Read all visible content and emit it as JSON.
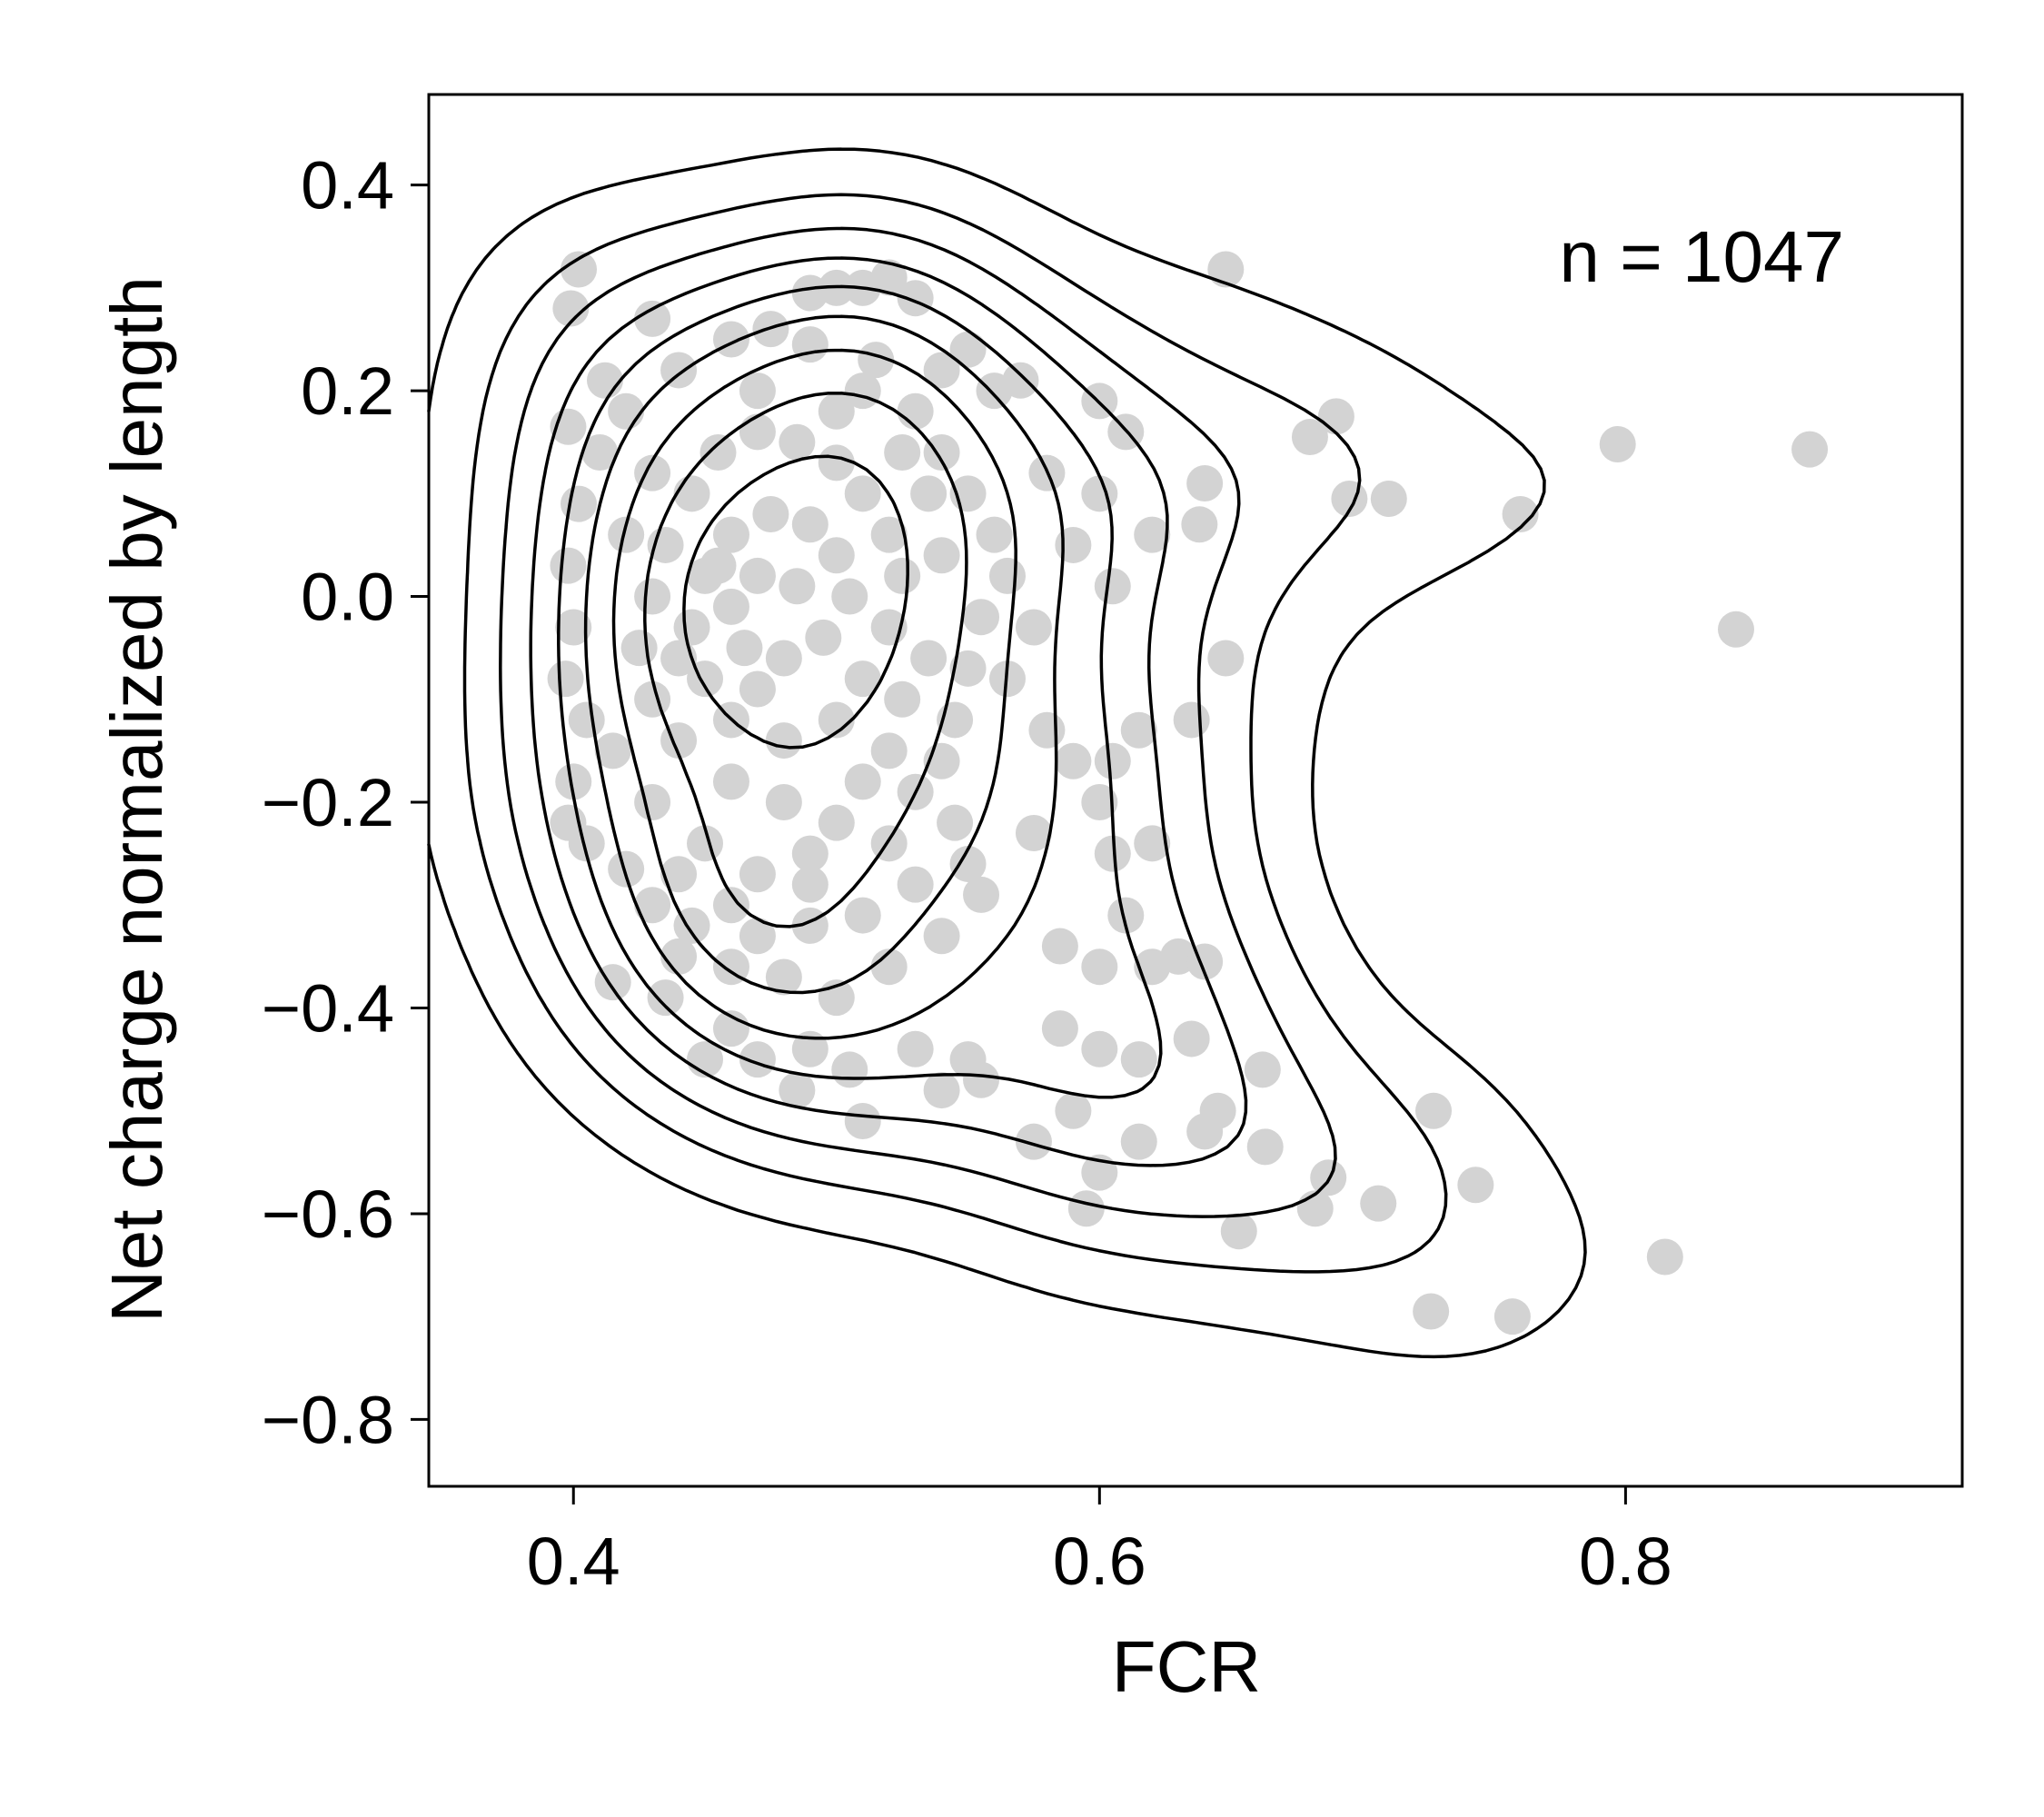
{
  "chart_data": {
    "type": "scatter",
    "xlabel": "FCR",
    "ylabel": "Net charge normalized by length",
    "xlim": [
      0.345,
      0.928
    ],
    "ylim": [
      -0.865,
      0.488
    ],
    "x_ticks": [
      0.4,
      0.6,
      0.8
    ],
    "x_tick_labels": [
      "0.4",
      "0.6",
      "0.8"
    ],
    "y_ticks": [
      0.4,
      0.2,
      0.0,
      -0.2,
      -0.4,
      -0.6,
      -0.8
    ],
    "y_tick_labels": [
      "0.4",
      "0.2",
      "0.0",
      "−0.2",
      "−0.4",
      "−0.6",
      "−0.8"
    ],
    "grid": false,
    "annotation": "n = 1047",
    "colors": {
      "points": "#d3d3d3",
      "contours": "#000000",
      "axes": "#000000"
    },
    "series": [
      {
        "points": [
          [
            0.402,
            0.318
          ],
          [
            0.399,
            0.28
          ],
          [
            0.43,
            0.27
          ],
          [
            0.412,
            0.21
          ],
          [
            0.398,
            0.165
          ],
          [
            0.52,
            0.31
          ],
          [
            0.51,
            0.3
          ],
          [
            0.49,
            0.295
          ],
          [
            0.53,
            0.29
          ],
          [
            0.5,
            0.3
          ],
          [
            0.55,
            0.24
          ],
          [
            0.54,
            0.22
          ],
          [
            0.56,
            0.2
          ],
          [
            0.57,
            0.21
          ],
          [
            0.58,
            0.12
          ],
          [
            0.6,
            0.19
          ],
          [
            0.61,
            0.16
          ],
          [
            0.6,
            0.1
          ],
          [
            0.59,
            0.05
          ],
          [
            0.605,
            0.01
          ],
          [
            0.575,
            -0.03
          ],
          [
            0.565,
            -0.08
          ],
          [
            0.58,
            -0.13
          ],
          [
            0.59,
            -0.16
          ],
          [
            0.6,
            -0.2
          ],
          [
            0.605,
            -0.25
          ],
          [
            0.61,
            -0.31
          ],
          [
            0.62,
            -0.24
          ],
          [
            0.615,
            -0.13
          ],
          [
            0.605,
            -0.16
          ],
          [
            0.575,
            -0.23
          ],
          [
            0.585,
            -0.34
          ],
          [
            0.6,
            -0.36
          ],
          [
            0.62,
            -0.36
          ],
          [
            0.63,
            -0.35
          ],
          [
            0.64,
            -0.355
          ],
          [
            0.585,
            -0.42
          ],
          [
            0.6,
            -0.44
          ],
          [
            0.615,
            -0.45
          ],
          [
            0.59,
            -0.5
          ],
          [
            0.575,
            -0.53
          ],
          [
            0.6,
            -0.56
          ],
          [
            0.595,
            -0.595
          ],
          [
            0.615,
            -0.53
          ],
          [
            0.64,
            -0.52
          ],
          [
            0.645,
            -0.5
          ],
          [
            0.635,
            -0.43
          ],
          [
            0.555,
            -0.47
          ],
          [
            0.55,
            -0.45
          ],
          [
            0.54,
            -0.48
          ],
          [
            0.53,
            -0.44
          ],
          [
            0.505,
            -0.46
          ],
          [
            0.51,
            -0.51
          ],
          [
            0.49,
            -0.44
          ],
          [
            0.485,
            -0.48
          ],
          [
            0.47,
            -0.45
          ],
          [
            0.45,
            -0.45
          ],
          [
            0.46,
            -0.42
          ],
          [
            0.435,
            -0.39
          ],
          [
            0.415,
            -0.375
          ],
          [
            0.44,
            -0.35
          ],
          [
            0.445,
            -0.32
          ],
          [
            0.43,
            -0.3
          ],
          [
            0.42,
            -0.265
          ],
          [
            0.405,
            -0.24
          ],
          [
            0.398,
            -0.22
          ],
          [
            0.4,
            -0.18
          ],
          [
            0.405,
            -0.12
          ],
          [
            0.397,
            -0.08
          ],
          [
            0.4,
            -0.03
          ],
          [
            0.398,
            0.03
          ],
          [
            0.402,
            0.09
          ],
          [
            0.41,
            0.14
          ],
          [
            0.42,
            0.18
          ],
          [
            0.44,
            0.22
          ],
          [
            0.46,
            0.25
          ],
          [
            0.475,
            0.26
          ],
          [
            0.49,
            0.245
          ],
          [
            0.515,
            0.23
          ],
          [
            0.51,
            0.2
          ],
          [
            0.53,
            0.18
          ],
          [
            0.54,
            0.14
          ],
          [
            0.55,
            0.1
          ],
          [
            0.56,
            0.06
          ],
          [
            0.565,
            0.02
          ],
          [
            0.555,
            -0.02
          ],
          [
            0.55,
            -0.07
          ],
          [
            0.545,
            -0.12
          ],
          [
            0.54,
            -0.16
          ],
          [
            0.545,
            -0.22
          ],
          [
            0.55,
            -0.26
          ],
          [
            0.555,
            -0.29
          ],
          [
            0.54,
            -0.33
          ],
          [
            0.52,
            -0.36
          ],
          [
            0.5,
            -0.39
          ],
          [
            0.48,
            -0.37
          ],
          [
            0.46,
            -0.36
          ],
          [
            0.47,
            -0.33
          ],
          [
            0.49,
            -0.32
          ],
          [
            0.51,
            -0.31
          ],
          [
            0.53,
            -0.28
          ],
          [
            0.52,
            -0.24
          ],
          [
            0.5,
            -0.22
          ],
          [
            0.48,
            -0.2
          ],
          [
            0.46,
            -0.18
          ],
          [
            0.44,
            -0.14
          ],
          [
            0.43,
            -0.1
          ],
          [
            0.425,
            -0.05
          ],
          [
            0.43,
            0.0
          ],
          [
            0.435,
            0.05
          ],
          [
            0.445,
            0.1
          ],
          [
            0.455,
            0.14
          ],
          [
            0.47,
            0.16
          ],
          [
            0.485,
            0.15
          ],
          [
            0.5,
            0.13
          ],
          [
            0.51,
            0.1
          ],
          [
            0.52,
            0.06
          ],
          [
            0.525,
            0.02
          ],
          [
            0.52,
            -0.03
          ],
          [
            0.51,
            -0.08
          ],
          [
            0.5,
            -0.12
          ],
          [
            0.48,
            -0.14
          ],
          [
            0.46,
            -0.12
          ],
          [
            0.45,
            -0.08
          ],
          [
            0.445,
            -0.03
          ],
          [
            0.45,
            0.02
          ],
          [
            0.46,
            0.06
          ],
          [
            0.475,
            0.08
          ],
          [
            0.49,
            0.07
          ],
          [
            0.5,
            0.04
          ],
          [
            0.505,
            0.0
          ],
          [
            0.495,
            -0.04
          ],
          [
            0.48,
            -0.06
          ],
          [
            0.465,
            -0.05
          ],
          [
            0.46,
            -0.01
          ],
          [
            0.47,
            0.02
          ],
          [
            0.485,
            0.01
          ],
          [
            0.455,
            0.03
          ],
          [
            0.44,
            -0.06
          ],
          [
            0.47,
            -0.09
          ],
          [
            0.52,
            -0.15
          ],
          [
            0.53,
            -0.19
          ],
          [
            0.49,
            -0.25
          ],
          [
            0.47,
            -0.27
          ],
          [
            0.45,
            -0.24
          ],
          [
            0.43,
            -0.2
          ],
          [
            0.415,
            -0.15
          ],
          [
            0.42,
            0.06
          ],
          [
            0.43,
            0.12
          ],
          [
            0.47,
            0.2
          ],
          [
            0.5,
            0.18
          ],
          [
            0.525,
            0.14
          ],
          [
            0.535,
            0.1
          ],
          [
            0.54,
            0.04
          ],
          [
            0.535,
            -0.06
          ],
          [
            0.525,
            -0.1
          ],
          [
            0.51,
            -0.18
          ],
          [
            0.49,
            -0.28
          ],
          [
            0.46,
            -0.3
          ],
          [
            0.44,
            -0.27
          ],
          [
            0.62,
            0.06
          ],
          [
            0.64,
            0.11
          ],
          [
            0.638,
            0.07
          ],
          [
            0.648,
            -0.06
          ],
          [
            0.635,
            -0.12
          ],
          [
            0.648,
            0.318
          ],
          [
            0.68,
            0.155
          ],
          [
            0.69,
            0.175
          ],
          [
            0.695,
            0.095
          ],
          [
            0.71,
            0.095
          ],
          [
            0.76,
            0.08
          ],
          [
            0.797,
            0.148
          ],
          [
            0.87,
            0.143
          ],
          [
            0.842,
            -0.032
          ],
          [
            0.662,
            -0.46
          ],
          [
            0.663,
            -0.535
          ],
          [
            0.687,
            -0.565
          ],
          [
            0.682,
            -0.595
          ],
          [
            0.706,
            -0.59
          ],
          [
            0.653,
            -0.617
          ],
          [
            0.727,
            -0.5
          ],
          [
            0.743,
            -0.572
          ],
          [
            0.726,
            -0.695
          ],
          [
            0.757,
            -0.7
          ],
          [
            0.815,
            -0.642
          ]
        ]
      }
    ]
  }
}
